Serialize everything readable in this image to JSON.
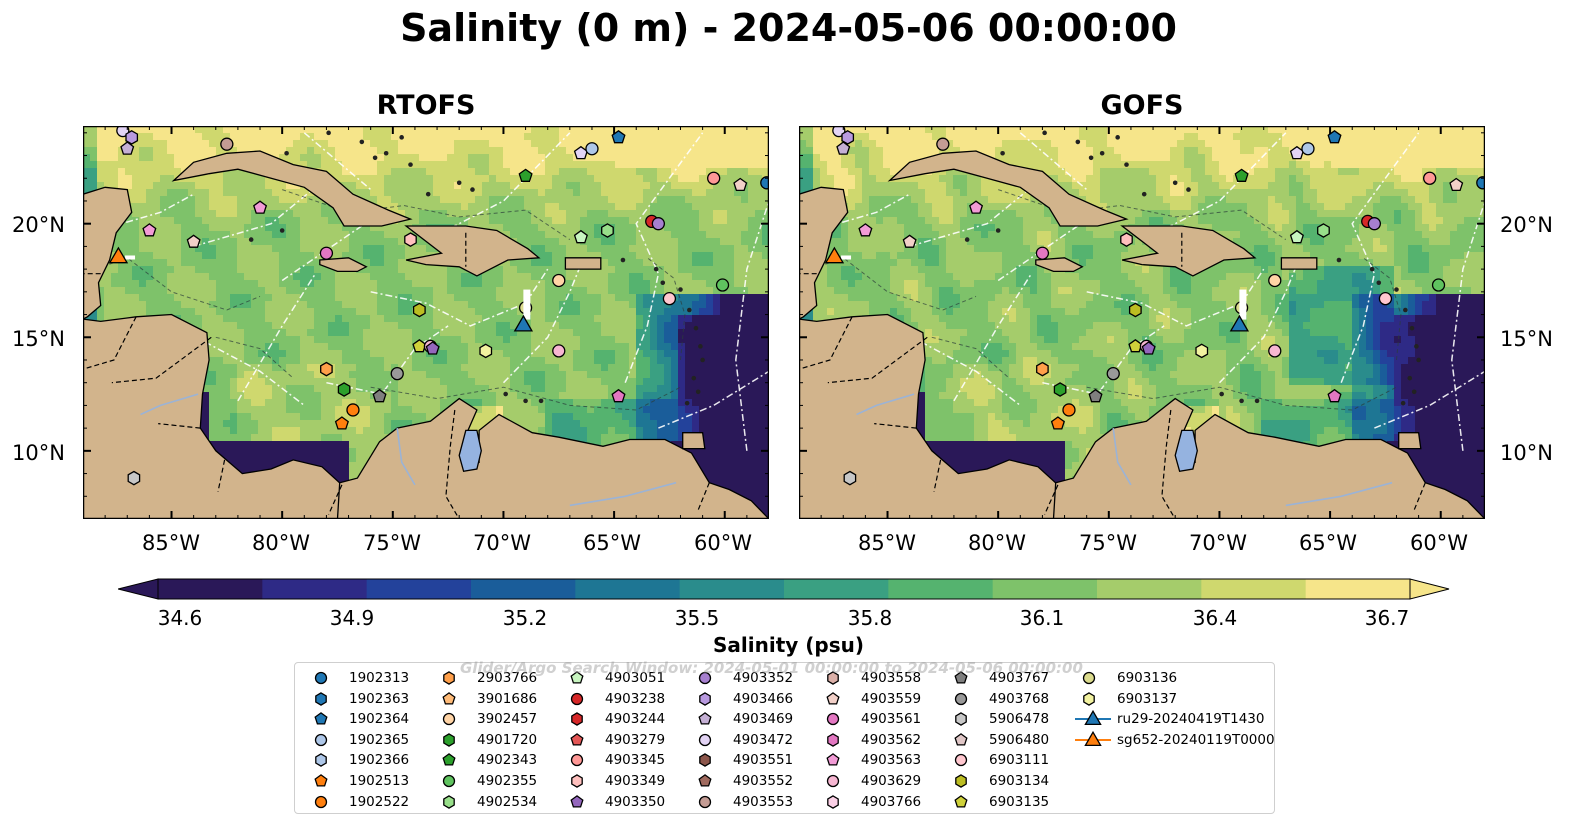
{
  "title": "Salinity (0 m) - 2024-05-06 00:00:00",
  "panels": [
    {
      "title": "RTOFS",
      "side": "left"
    },
    {
      "title": "GOFS",
      "side": "right"
    }
  ],
  "axes": {
    "lon_ticks": [
      "85°W",
      "80°W",
      "75°W",
      "70°W",
      "65°W",
      "60°W"
    ],
    "lat_ticks": [
      "20°N",
      "15°N",
      "10°N"
    ]
  },
  "colorbar": {
    "label": "Salinity (psu)",
    "ticks": [
      "34.6",
      "34.9",
      "35.2",
      "35.5",
      "35.8",
      "36.1",
      "36.4",
      "36.7"
    ],
    "colors": [
      "#2a1858",
      "#2e2a86",
      "#23429b",
      "#1a5d9a",
      "#1e7694",
      "#2a8c8c",
      "#3aa082",
      "#55b36f",
      "#7ec26a",
      "#a5cc6b",
      "#cfd86e",
      "#f6e58a"
    ],
    "extend": "both"
  },
  "legend": {
    "watermark": "Glider/Argo Search Window: 2024-05-01 00:00:00 to 2024-05-06 00:00:00",
    "items": [
      {
        "label": "1902313",
        "shape": "circle",
        "color": "#1f77b4"
      },
      {
        "label": "1902363",
        "shape": "hexagon",
        "color": "#1f77b4"
      },
      {
        "label": "1902364",
        "shape": "pentagon",
        "color": "#1f77b4"
      },
      {
        "label": "1902365",
        "shape": "circle",
        "color": "#aec7e8"
      },
      {
        "label": "1902366",
        "shape": "hexagon",
        "color": "#aec7e8"
      },
      {
        "label": "1902513",
        "shape": "pentagon",
        "color": "#ff7f0e"
      },
      {
        "label": "1902522",
        "shape": "circle",
        "color": "#ff7f0e"
      },
      {
        "label": "2903766",
        "shape": "hexagon",
        "color": "#ff9f4a"
      },
      {
        "label": "3901686",
        "shape": "pentagon",
        "color": "#ffbb78"
      },
      {
        "label": "3902457",
        "shape": "circle",
        "color": "#ffd4a6"
      },
      {
        "label": "4901720",
        "shape": "hexagon",
        "color": "#2ca02c"
      },
      {
        "label": "4902343",
        "shape": "pentagon",
        "color": "#2ca02c"
      },
      {
        "label": "4902355",
        "shape": "circle",
        "color": "#5fc35f"
      },
      {
        "label": "4902534",
        "shape": "hexagon",
        "color": "#98df8a"
      },
      {
        "label": "4903051",
        "shape": "pentagon",
        "color": "#c8f5c0"
      },
      {
        "label": "4903238",
        "shape": "circle",
        "color": "#d62728"
      },
      {
        "label": "4903244",
        "shape": "hexagon",
        "color": "#d62728"
      },
      {
        "label": "4903279",
        "shape": "pentagon",
        "color": "#e45756"
      },
      {
        "label": "4903345",
        "shape": "circle",
        "color": "#ff9896"
      },
      {
        "label": "4903349",
        "shape": "hexagon",
        "color": "#ffc0be"
      },
      {
        "label": "4903350",
        "shape": "pentagon",
        "color": "#9467bd"
      },
      {
        "label": "4903352",
        "shape": "circle",
        "color": "#a67fcf"
      },
      {
        "label": "4903466",
        "shape": "hexagon",
        "color": "#b99ae0"
      },
      {
        "label": "4903469",
        "shape": "pentagon",
        "color": "#c5b0d5"
      },
      {
        "label": "4903472",
        "shape": "circle",
        "color": "#e3d4f5"
      },
      {
        "label": "4903551",
        "shape": "hexagon",
        "color": "#8c564b"
      },
      {
        "label": "4903552",
        "shape": "pentagon",
        "color": "#a06a5e"
      },
      {
        "label": "4903553",
        "shape": "circle",
        "color": "#c49c94"
      },
      {
        "label": "4903558",
        "shape": "hexagon",
        "color": "#dbb0a8"
      },
      {
        "label": "4903559",
        "shape": "pentagon",
        "color": "#f2d0c8"
      },
      {
        "label": "4903561",
        "shape": "circle",
        "color": "#e377c2"
      },
      {
        "label": "4903562",
        "shape": "hexagon",
        "color": "#e377c2"
      },
      {
        "label": "4903563",
        "shape": "pentagon",
        "color": "#f29bd6"
      },
      {
        "label": "4903629",
        "shape": "circle",
        "color": "#f7b6d2"
      },
      {
        "label": "4903766",
        "shape": "hexagon",
        "color": "#fbd0e6"
      },
      {
        "label": "4903767",
        "shape": "pentagon",
        "color": "#7f7f7f"
      },
      {
        "label": "4903768",
        "shape": "circle",
        "color": "#999999"
      },
      {
        "label": "5906478",
        "shape": "hexagon",
        "color": "#c7c7c7"
      },
      {
        "label": "5906480",
        "shape": "pentagon",
        "color": "#e0c7c7"
      },
      {
        "label": "6903111",
        "shape": "circle",
        "color": "#ffc7cf"
      },
      {
        "label": "6903134",
        "shape": "hexagon",
        "color": "#bcbd22"
      },
      {
        "label": "6903135",
        "shape": "pentagon",
        "color": "#cfd13a"
      },
      {
        "label": "6903136",
        "shape": "circle",
        "color": "#dbdb8d"
      },
      {
        "label": "6903137",
        "shape": "hexagon",
        "color": "#f2f2a0"
      },
      {
        "label": "ru29-20240419T1430",
        "shape": "triangle",
        "color": "#1f77b4"
      },
      {
        "label": "sg652-20240119T0000",
        "shape": "triangle",
        "color": "#ff7f0e"
      }
    ]
  }
}
